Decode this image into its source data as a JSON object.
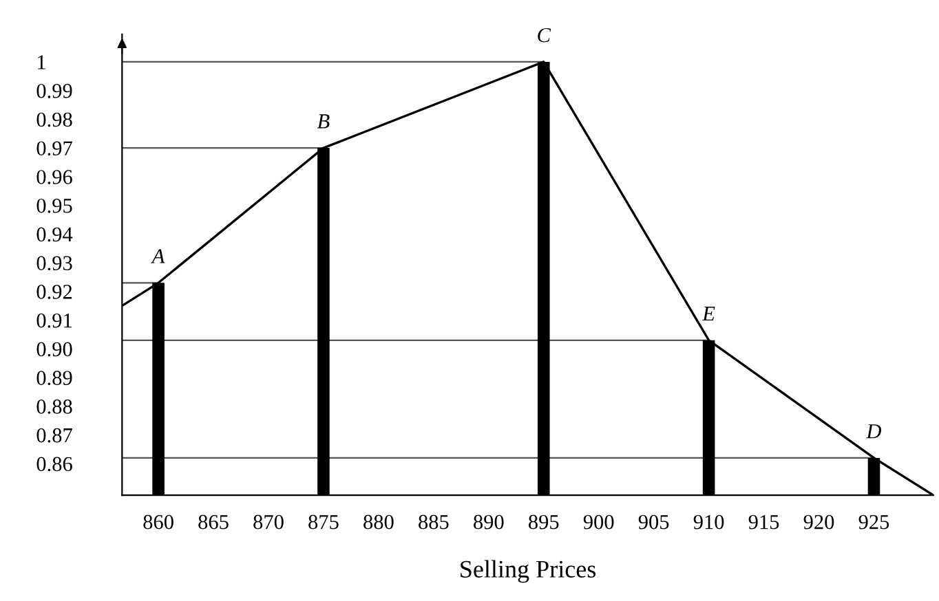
{
  "chart_data": {
    "type": "bar",
    "xlabel": "Selling Prices",
    "x": [
      860,
      875,
      895,
      910,
      925
    ],
    "series": [
      {
        "color": "#000000",
        "values": [
          0.923,
          0.97,
          1.0,
          0.903,
          0.862
        ]
      },
      {
        "type": "line",
        "color": "#555555",
        "x": [
          856.7,
          860
        ],
        "values": [
          0.923,
          0.923
        ],
        "marker": "none",
        "line_style": "solid"
      },
      {
        "type": "line",
        "color": "#555555",
        "x": [
          856.7,
          875
        ],
        "values": [
          0.97,
          0.97
        ],
        "marker": "none",
        "line_style": "solid"
      },
      {
        "type": "line",
        "color": "#555555",
        "x": [
          856.7,
          895
        ],
        "values": [
          1.0,
          1.0
        ],
        "marker": "none",
        "line_style": "solid"
      },
      {
        "type": "line",
        "color": "#555555",
        "x": [
          856.7,
          910
        ],
        "values": [
          0.903,
          0.903
        ],
        "marker": "none",
        "line_style": "solid"
      },
      {
        "type": "line",
        "color": "#555555",
        "x": [
          856.7,
          925
        ],
        "values": [
          0.862,
          0.862
        ],
        "marker": "none",
        "line_style": "solid"
      },
      {
        "type": "line",
        "color": "#000000",
        "x": [
          856.7,
          860,
          875,
          895,
          910,
          925,
          930.4
        ],
        "values": [
          0.915,
          0.923,
          0.97,
          1.0,
          0.903,
          0.862,
          0.849
        ],
        "marker": "none",
        "line_style": "solid"
      }
    ],
    "annotations": [
      {
        "text": "A",
        "x": 860,
        "y": 0.923
      },
      {
        "text": "B",
        "x": 875,
        "y": 0.97
      },
      {
        "text": "C",
        "x": 895,
        "y": 1.0
      },
      {
        "text": "E",
        "x": 910,
        "y": 0.903
      },
      {
        "text": "D",
        "x": 925,
        "y": 0.862
      }
    ],
    "xlim": [
      856.7,
      930.4
    ],
    "ylim": [
      0.849,
      1.0096
    ],
    "xticks": [
      860,
      865,
      870,
      875,
      880,
      885,
      890,
      895,
      900,
      905,
      910,
      915,
      920,
      925
    ],
    "yticks": [
      0.86,
      0.87,
      0.88,
      0.89,
      {
        "value": 0.9,
        "label": "0.90"
      },
      0.91,
      0.92,
      0.93,
      0.94,
      0.95,
      0.96,
      0.97,
      0.98,
      0.99,
      1
    ],
    "grid": false,
    "legend": false
  }
}
